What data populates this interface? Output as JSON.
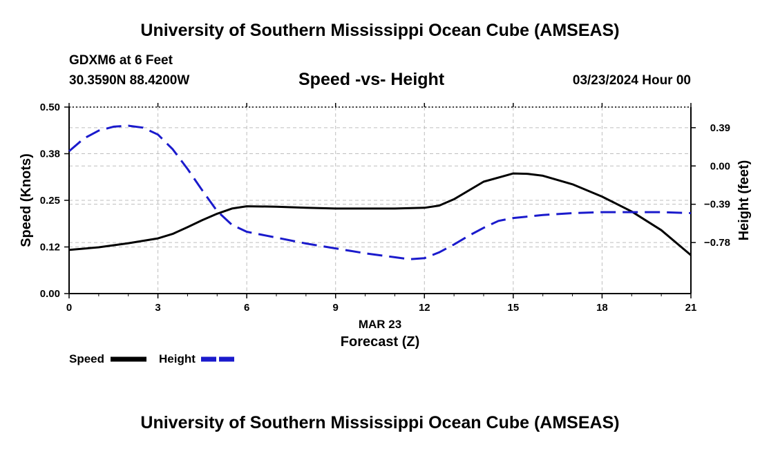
{
  "header": {
    "title": "University of Southern Mississippi Ocean Cube (AMSEAS)",
    "station": "GDXM6 at 6 Feet",
    "coords": "30.3590N  88.4200W",
    "chart_title": "Speed -vs- Height",
    "datetime": "03/23/2024 Hour 00"
  },
  "footer": {
    "title": "University of Southern Mississippi Ocean Cube (AMSEAS)"
  },
  "colors": {
    "speed": "#000000",
    "height": "#1a1acc",
    "grid": "#bdbdbd"
  },
  "chart_data": {
    "type": "line",
    "title": "Speed -vs- Height",
    "xlabel": "Forecast (Z)",
    "xlabel_date": "MAR 23",
    "xlim": [
      0,
      21
    ],
    "xticks": [
      0,
      3,
      6,
      9,
      12,
      15,
      18,
      21
    ],
    "xtick_labels": [
      "0",
      "3",
      "6",
      "9",
      "12",
      "15",
      "18",
      "21"
    ],
    "y_left": {
      "label": "Speed (Knots)",
      "lim": [
        0,
        0.5
      ],
      "ticks": [
        0,
        0.125,
        0.25,
        0.375,
        0.5
      ],
      "tick_labels": [
        "0.00",
        "0.12",
        "0.25",
        "0.38",
        "0.50"
      ]
    },
    "y_right": {
      "label": "Height (feet)",
      "lim": [
        -1.3,
        0.6
      ],
      "ticks": [
        -0.78,
        -0.39,
        0.0,
        0.39
      ],
      "tick_labels": [
        "−0.78",
        "−0.39",
        "0.00",
        "0.39"
      ]
    },
    "grid": true,
    "series": [
      {
        "name": "Speed",
        "axis": "left",
        "style": "solid",
        "x": [
          0,
          1,
          2,
          3,
          3.5,
          4,
          4.5,
          5,
          5.5,
          6,
          7,
          8,
          9,
          10,
          11,
          12,
          12.5,
          13,
          14,
          15,
          15.5,
          16,
          17,
          18,
          19,
          20,
          21
        ],
        "y": [
          0.117,
          0.124,
          0.135,
          0.148,
          0.16,
          0.178,
          0.197,
          0.214,
          0.228,
          0.234,
          0.233,
          0.23,
          0.228,
          0.228,
          0.228,
          0.23,
          0.236,
          0.253,
          0.3,
          0.322,
          0.321,
          0.316,
          0.293,
          0.26,
          0.22,
          0.17,
          0.103
        ]
      },
      {
        "name": "Height",
        "axis": "right",
        "style": "dashed",
        "x": [
          0,
          0.5,
          1,
          1.5,
          2,
          2.5,
          3,
          3.5,
          4,
          4.5,
          5,
          5.5,
          6,
          7,
          8,
          9,
          10,
          11,
          11.5,
          12,
          12.5,
          13,
          13.5,
          14,
          14.5,
          15,
          16,
          17,
          18,
          19,
          20,
          21
        ],
        "y": [
          0.15,
          0.28,
          0.36,
          0.4,
          0.41,
          0.39,
          0.32,
          0.17,
          -0.03,
          -0.25,
          -0.46,
          -0.6,
          -0.67,
          -0.73,
          -0.79,
          -0.84,
          -0.89,
          -0.93,
          -0.95,
          -0.94,
          -0.88,
          -0.8,
          -0.71,
          -0.63,
          -0.56,
          -0.53,
          -0.5,
          -0.48,
          -0.47,
          -0.47,
          -0.47,
          -0.48
        ]
      }
    ],
    "legend": {
      "position": "bottom-left",
      "items": [
        "Speed",
        "Height"
      ]
    }
  }
}
